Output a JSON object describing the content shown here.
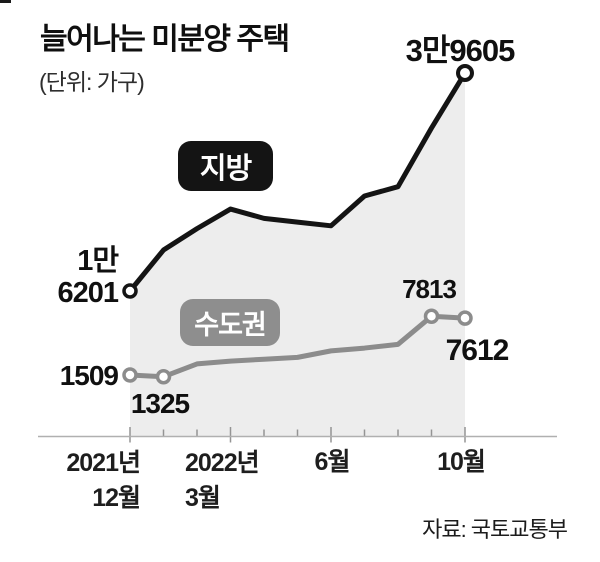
{
  "colors": {
    "jibang_line": "#141414",
    "sudogwon_line": "#8c8c8c",
    "area_fill": "#ededed",
    "axis_line": "#b0b0b0",
    "tick": "#949494",
    "badge_jibang_bg": "#141414",
    "badge_sudogwon_bg": "#8e8e8e",
    "badge_text": "#ffffff"
  },
  "chart_data": {
    "type": "line",
    "title": "늘어나는 미분양 주택",
    "unit_note": "(단위: 가구)",
    "source": "자료: 국토교통부",
    "x": [
      "2021-12",
      "2022-01",
      "2022-02",
      "2022-03",
      "2022-04",
      "2022-05",
      "2022-06",
      "2022-07",
      "2022-08",
      "2022-09",
      "2022-10"
    ],
    "x_ticks": [
      {
        "index": 0,
        "line1": "2021년",
        "line2": "12월"
      },
      {
        "index": 3,
        "line1": "2022년",
        "line2": "3월"
      },
      {
        "index": 6,
        "line1": "6월"
      },
      {
        "index": 10,
        "line1": "10월"
      }
    ],
    "series": [
      {
        "name": "지방",
        "color": "#141414",
        "area": true,
        "values": [
          16201,
          20600,
          22900,
          25000,
          24000,
          23600,
          23200,
          26400,
          27400,
          33700,
          39605
        ],
        "markers_at": [
          0,
          10
        ]
      },
      {
        "name": "수도권",
        "color": "#8c8c8c",
        "area": false,
        "values": [
          1509,
          1325,
          2700,
          3000,
          3200,
          3400,
          4100,
          4400,
          4800,
          7813,
          7612
        ],
        "markers_at": [
          0,
          1,
          9,
          10
        ]
      }
    ],
    "annotations": [
      {
        "series": "지방",
        "x": "2021-12",
        "line1": "1만",
        "line2": "6201"
      },
      {
        "series": "지방",
        "x": "2022-10",
        "text": "3만9605"
      },
      {
        "series": "수도권",
        "x": "2021-12",
        "text": "1509"
      },
      {
        "series": "수도권",
        "x": "2022-01",
        "text": "1325"
      },
      {
        "series": "수도권",
        "x": "2022-09",
        "text": "7813"
      },
      {
        "series": "수도권",
        "x": "2022-10",
        "text": "7612"
      }
    ],
    "legend_position": "badges-on-plot",
    "grid": false
  }
}
